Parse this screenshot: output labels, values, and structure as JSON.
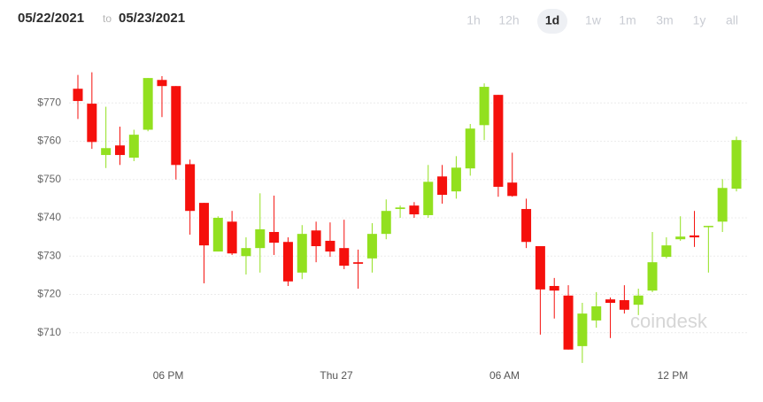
{
  "header": {
    "date_from": "05/22/2021",
    "date_sep": "to",
    "date_to": "05/23/2021",
    "ranges": [
      "1h",
      "12h",
      "1d",
      "1w",
      "1m",
      "3m",
      "1y",
      "all"
    ],
    "selected_range": 2
  },
  "chart_data": {
    "type": "candlestick",
    "watermark": "coindesk",
    "categories": [
      null,
      null,
      null,
      null,
      null,
      null,
      "06 PM",
      null,
      null,
      null,
      null,
      null,
      null,
      null,
      null,
      null,
      null,
      null,
      "Thu 27",
      null,
      null,
      null,
      null,
      null,
      null,
      null,
      null,
      null,
      null,
      null,
      "06 AM",
      null,
      null,
      null,
      null,
      null,
      null,
      null,
      null,
      null,
      null,
      null,
      "12 PM",
      null,
      null,
      null,
      null,
      null
    ],
    "open": [
      773.7,
      769.8,
      756.4,
      758.9,
      755.7,
      763,
      776,
      774.4,
      754,
      743.9,
      731.2,
      739,
      730,
      732.1,
      736.3,
      733.7,
      725.7,
      736.7,
      734,
      732.1,
      728.4,
      729.4,
      735.8,
      742.3,
      743.2,
      740.7,
      750.8,
      746.9,
      752.9,
      764.2,
      772.1,
      749.2,
      742.3,
      732.6,
      722.2,
      719.7,
      706.5,
      713.2,
      718.7,
      718.5,
      717.3,
      721,
      729.8,
      734.4,
      735.4,
      737.6,
      739,
      747.6
    ],
    "high": [
      777.3,
      778,
      769,
      763.8,
      763,
      776.5,
      777,
      774.4,
      755.2,
      743.9,
      740.4,
      741.8,
      734.9,
      746.4,
      745.8,
      734.9,
      738.1,
      739,
      738.8,
      739.5,
      731.7,
      738.6,
      744.8,
      743.2,
      744.1,
      753.8,
      753.8,
      756.1,
      764.5,
      775.1,
      772.1,
      757,
      745,
      732.6,
      724.3,
      722.4,
      717.8,
      720.6,
      719.2,
      722.4,
      721.5,
      736.3,
      734.9,
      740.4,
      741.8,
      737.9,
      750.1,
      761.2
    ],
    "low": [
      765.8,
      758,
      753,
      753.8,
      754.8,
      762.6,
      766.3,
      750,
      735.6,
      722.9,
      731.2,
      730.3,
      725.2,
      725.7,
      730.3,
      722.2,
      724,
      728.4,
      729.8,
      726.6,
      721.5,
      725.7,
      734.4,
      740,
      740,
      740,
      743.7,
      745,
      751,
      760.3,
      745.5,
      745.5,
      732.1,
      709.5,
      713.7,
      705.6,
      702.1,
      711.3,
      708.6,
      715,
      714.6,
      720.6,
      729.4,
      734,
      732.4,
      725.7,
      736.3,
      746.9
    ],
    "close": [
      770.5,
      759.8,
      758.2,
      756.4,
      761.7,
      776.5,
      774.4,
      753.8,
      741.8,
      732.8,
      740,
      730.7,
      732.1,
      737,
      733.5,
      723.4,
      735.8,
      732.6,
      731.2,
      727.5,
      728,
      735.8,
      741.8,
      742.7,
      740.9,
      749.4,
      746,
      753.1,
      763.3,
      774.2,
      748.1,
      745.7,
      733.7,
      721.3,
      721,
      705.6,
      715,
      716.9,
      717.8,
      716,
      719.7,
      728.4,
      732.8,
      735.1,
      734.9,
      737.9,
      747.8,
      760.3
    ],
    "up_color": "#92e01f",
    "down_color": "#f5100c",
    "ylim": [
      700,
      783
    ],
    "yticks": [
      {
        "value": 710,
        "label": "$710"
      },
      {
        "value": 720,
        "label": "$720"
      },
      {
        "value": 730,
        "label": "$730"
      },
      {
        "value": 740,
        "label": "$740"
      },
      {
        "value": 750,
        "label": "$750"
      },
      {
        "value": 760,
        "label": "$760"
      },
      {
        "value": 770,
        "label": "$770"
      }
    ],
    "grid": true
  }
}
